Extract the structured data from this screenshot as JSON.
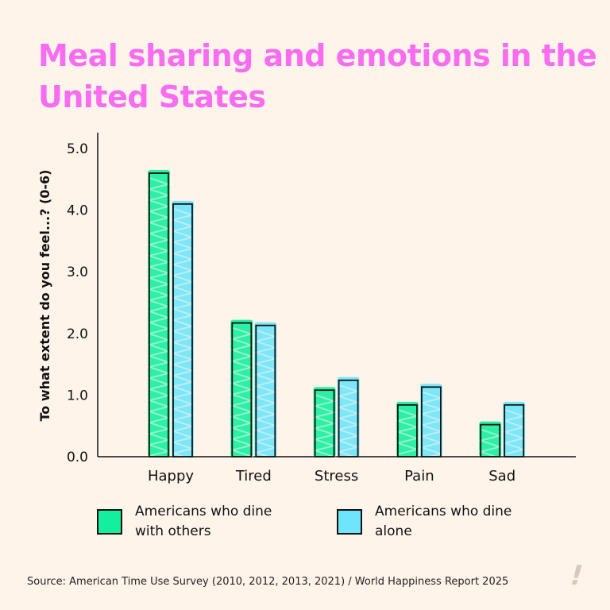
{
  "title": "Meal sharing and emotions in the United States",
  "source": "Source: American Time Use Survey (2010, 2012, 2013, 2021) / World Happiness Report 2025",
  "logo": "!",
  "chart_data": {
    "type": "bar",
    "title": "Meal sharing and emotions in the United States",
    "xlabel": "",
    "ylabel": "To what extent do you feel...? (0-6)",
    "ylim": [
      0,
      5.2
    ],
    "yticks": [
      "0.0",
      "1.0",
      "2.0",
      "3.0",
      "4.0",
      "5.0"
    ],
    "categories": [
      "Happy",
      "Tired",
      "Stress",
      "Pain",
      "Sad"
    ],
    "series": [
      {
        "name": "Americans who dine with others",
        "color": "#14ef9f",
        "values": [
          4.6,
          2.17,
          1.08,
          0.84,
          0.52
        ]
      },
      {
        "name": "Americans who dine alone",
        "color": "#6ee5fb",
        "values": [
          4.1,
          2.13,
          1.24,
          1.13,
          0.84
        ]
      }
    ],
    "grid": false,
    "legend": "bottom"
  }
}
